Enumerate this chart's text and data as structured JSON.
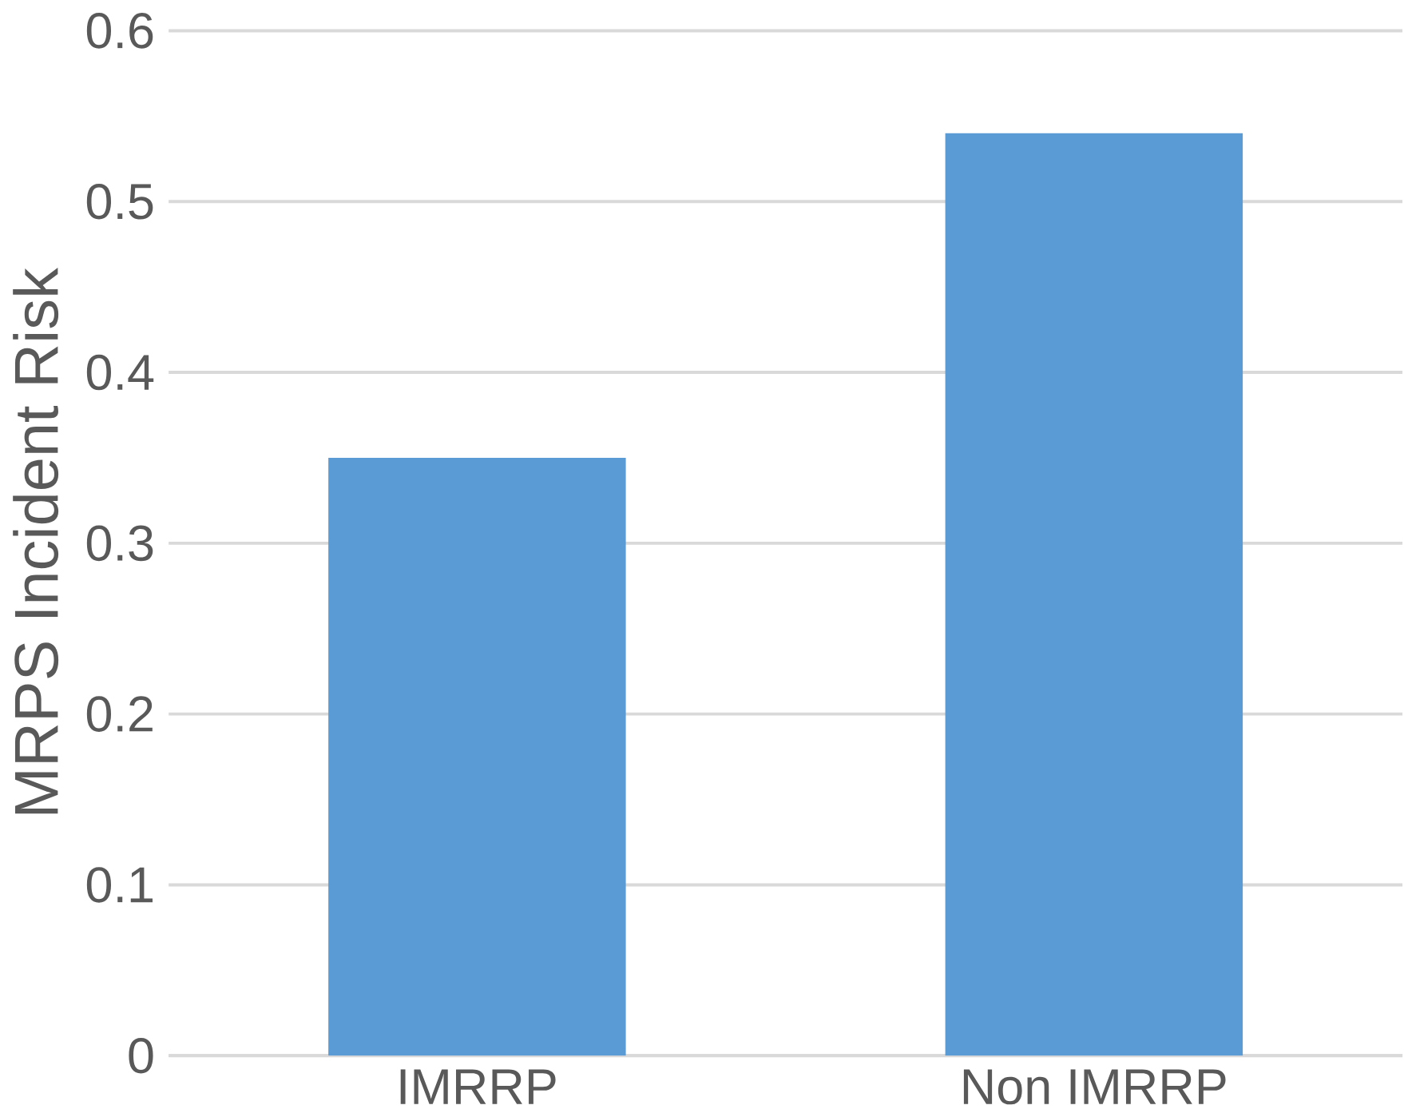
{
  "chart_data": {
    "type": "bar",
    "ylabel": "MRPS Incident Risk",
    "categories": [
      "IMRRP",
      "Non IMRRP"
    ],
    "values": [
      0.35,
      0.54
    ],
    "color": "#5b9bd5",
    "ylim": [
      0,
      0.6
    ],
    "yticks": [
      0,
      0.1,
      0.2,
      0.3,
      0.4,
      0.5,
      0.6
    ],
    "grid": "y"
  }
}
